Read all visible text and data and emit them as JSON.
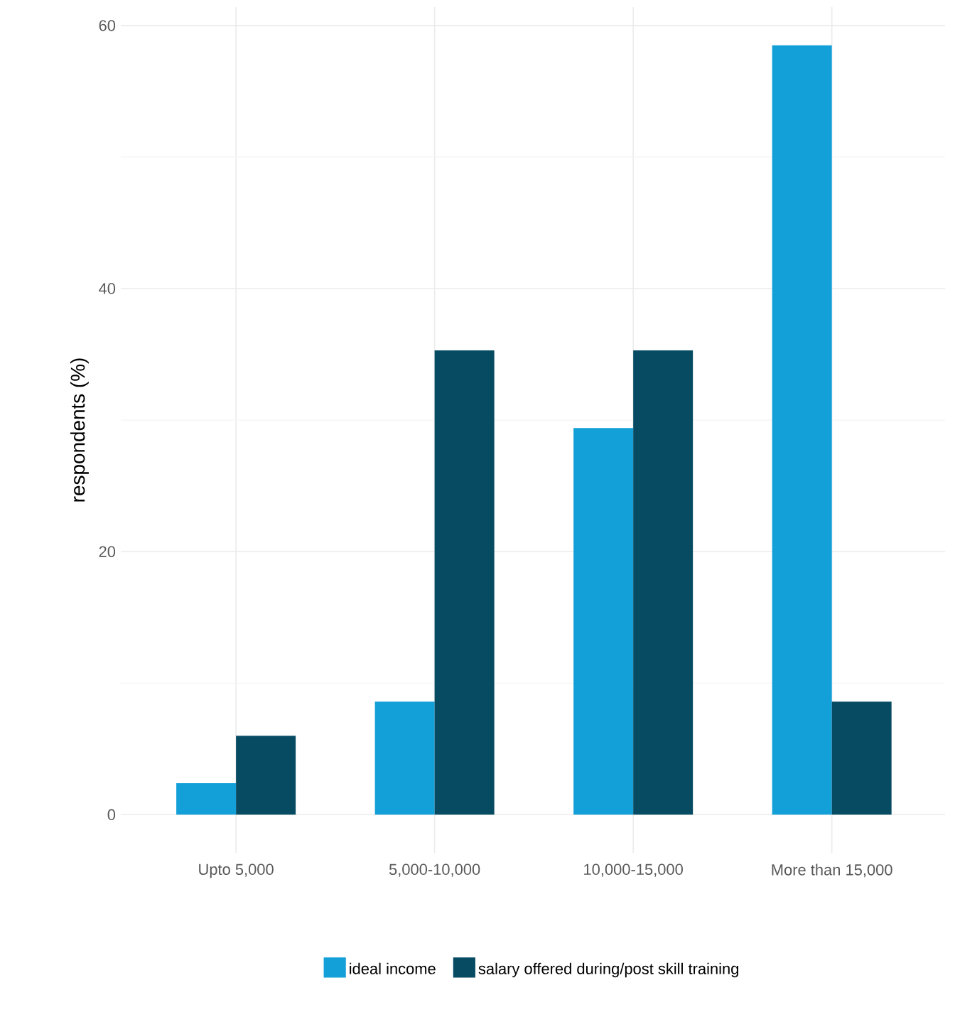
{
  "chart_data": {
    "type": "bar",
    "ylabel": "respondents (%)",
    "categories": [
      "Upto 5,000",
      "5,000-10,000",
      "10,000-15,000",
      "More than 15,000"
    ],
    "series": [
      {
        "name": "ideal income",
        "color": "#139fd8",
        "values": [
          2.4,
          8.6,
          29.4,
          58.5
        ]
      },
      {
        "name": "salary offered during/post skill training",
        "color": "#074b63",
        "values": [
          6.0,
          35.3,
          35.3,
          8.6
        ]
      }
    ],
    "ylim": [
      -2.9,
      61.4
    ],
    "yticks": [
      0,
      20,
      40,
      60
    ],
    "grid": true,
    "legend": "bottom"
  }
}
